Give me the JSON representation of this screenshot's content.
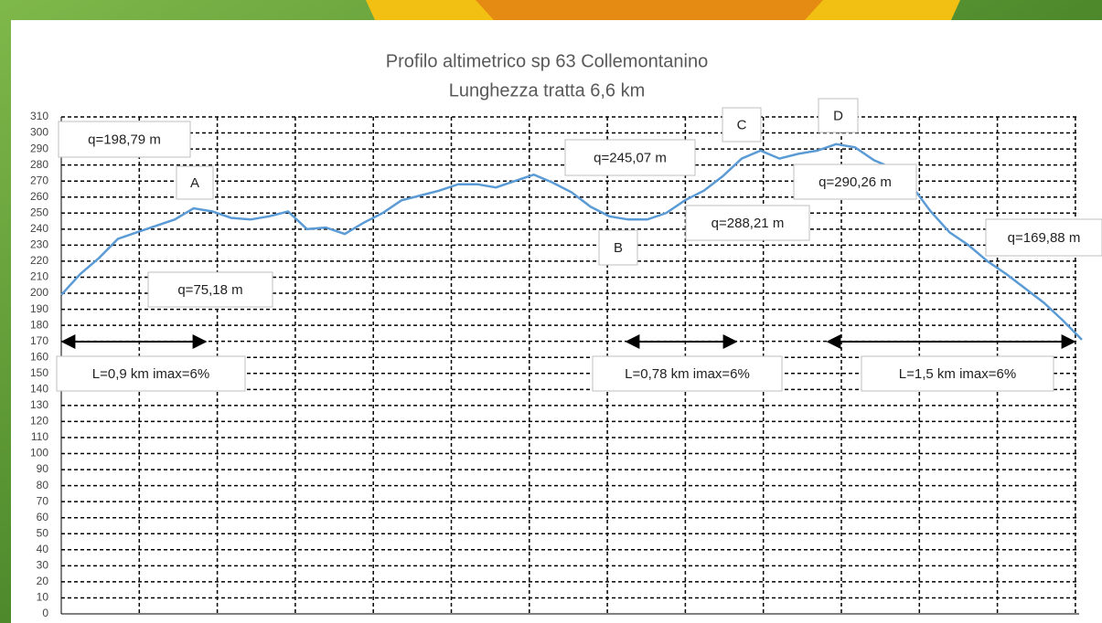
{
  "chart_data": {
    "type": "line",
    "title": "Profilo altimetrico sp 63 Collemontanino",
    "subtitle": "Lunghezza tratta 6,6 km",
    "ylim": [
      0,
      310
    ],
    "yticks": [
      0,
      10,
      20,
      30,
      40,
      50,
      60,
      70,
      80,
      90,
      100,
      110,
      120,
      130,
      140,
      150,
      160,
      170,
      180,
      190,
      200,
      210,
      220,
      230,
      240,
      250,
      260,
      270,
      280,
      290,
      300,
      310
    ],
    "grid": true,
    "color": "#5b9bd5",
    "values": [
      199,
      212,
      222,
      234,
      238,
      242,
      246,
      253,
      251,
      247,
      246,
      248,
      251,
      240,
      241,
      237,
      244,
      250,
      258,
      261,
      264,
      268,
      268,
      266,
      270,
      274,
      269,
      263,
      254,
      248,
      246,
      246,
      250,
      258,
      264,
      273,
      284,
      289,
      284,
      287,
      289,
      293,
      291,
      283,
      278,
      267,
      251,
      238,
      230,
      220,
      212,
      203,
      194,
      183,
      171
    ],
    "annotations": [
      "q=198,79 m",
      "A",
      "q=75,18 m",
      "L=0,9 km imax=6%",
      "q=245,07 m",
      "C",
      "D",
      "q=290,26 m",
      "q=288,21 m",
      "B",
      "q=169,88 m",
      "L=0,78 km imax=6%",
      "L=1,5 km imax=6%"
    ]
  }
}
